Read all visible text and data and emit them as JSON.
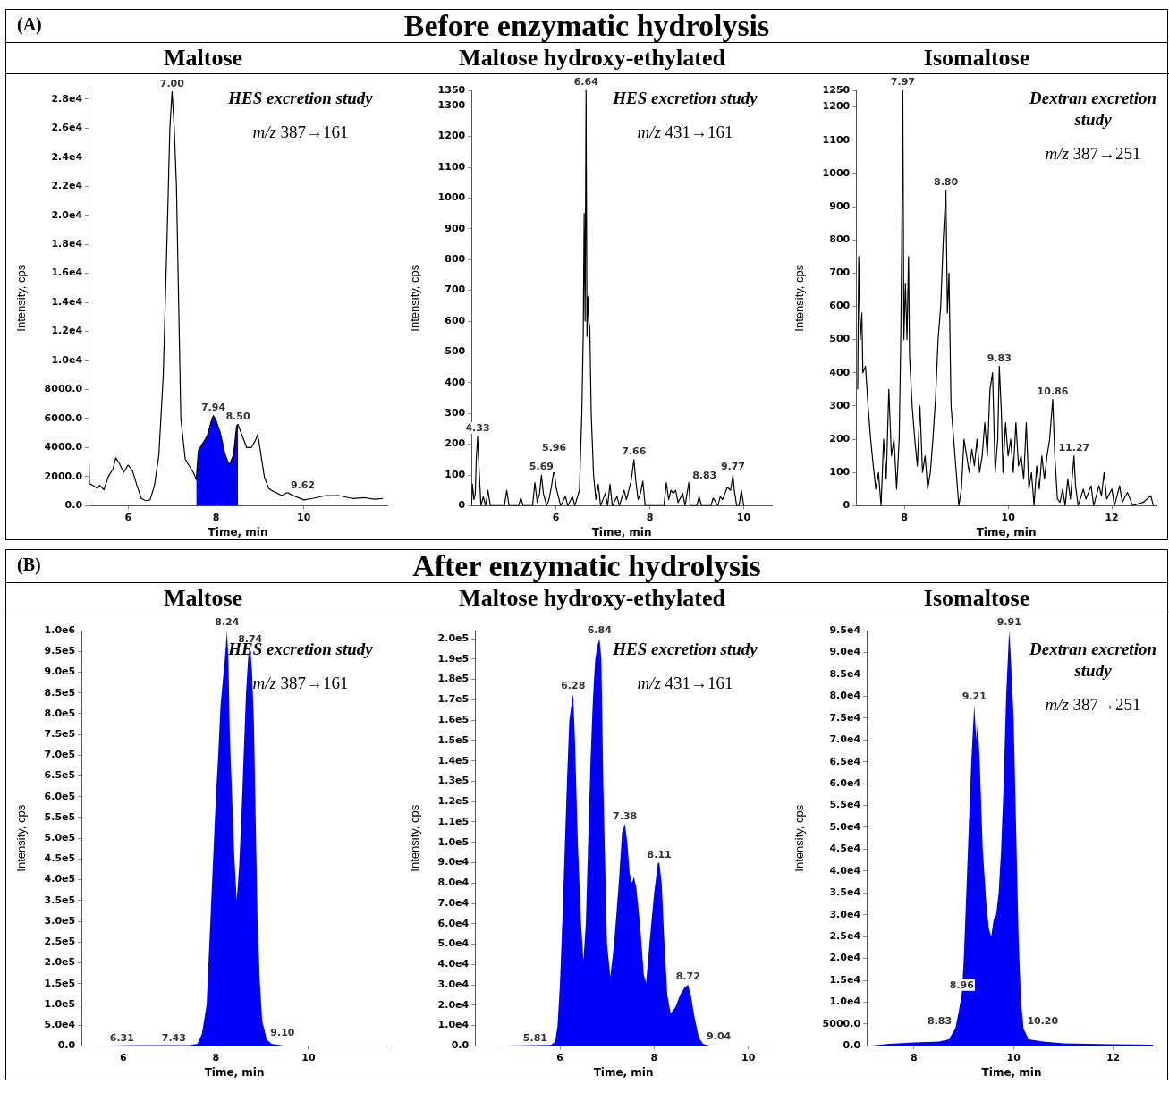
{
  "chart_data": [
    {
      "type": "other",
      "title": "Before enzymatic hydrolysis",
      "annotations": [
        "(A)"
      ]
    },
    {
      "type": "line",
      "title": "Maltose",
      "xlabel": "Time, min",
      "ylabel": "Intensity, cps",
      "marker": "none",
      "legend": false,
      "grid": false,
      "xlim": [
        5.1,
        11.9
      ],
      "xticks": [
        6,
        8,
        10
      ],
      "ylim": [
        0,
        28600
      ],
      "yticks": [
        {
          "value": 0,
          "label": "0.0"
        },
        {
          "value": 2000,
          "label": "2000.0"
        },
        {
          "value": 4000,
          "label": "4000.0"
        },
        {
          "value": 6000,
          "label": "6000.0"
        },
        {
          "value": 8000,
          "label": "8000.0"
        },
        {
          "value": 10000,
          "label": "1.0e4"
        },
        {
          "value": 12000,
          "label": "1.2e4"
        },
        {
          "value": 14000,
          "label": "1.4e4"
        },
        {
          "value": 16000,
          "label": "1.6e4"
        },
        {
          "value": 18000,
          "label": "1.8e4"
        },
        {
          "value": 20000,
          "label": "2.0e4"
        },
        {
          "value": 22000,
          "label": "2.2e4"
        },
        {
          "value": 24000,
          "label": "2.4e4"
        },
        {
          "value": 26000,
          "label": "2.6e4"
        },
        {
          "value": 28000,
          "label": "2.8e4"
        }
      ],
      "series": [
        {
          "type": "line",
          "color": "#000000",
          "x": [
            5.1,
            5.12,
            5.2,
            5.3,
            5.35,
            5.45,
            5.55,
            5.65,
            5.72,
            5.8,
            5.9,
            6.0,
            6.1,
            6.2,
            6.3,
            6.4,
            6.5,
            6.6,
            6.7,
            6.8,
            6.9,
            6.95,
            7.0,
            7.05,
            7.1,
            7.15,
            7.2,
            7.3,
            7.4,
            7.5,
            7.55,
            7.6,
            7.7,
            7.8,
            7.9,
            7.94,
            8.0,
            8.1,
            8.2,
            8.3,
            8.4,
            8.47,
            8.5,
            8.6,
            8.7,
            8.8,
            8.9,
            8.95,
            9.0,
            9.1,
            9.2,
            9.3,
            9.5,
            9.62,
            9.8,
            10.0,
            10.2,
            10.5,
            10.8,
            11.1,
            11.4,
            11.6,
            11.8
          ],
          "values": [
            4200,
            1500,
            1400,
            1200,
            1400,
            1100,
            2000,
            2500,
            3300,
            2900,
            2300,
            2800,
            2400,
            1400,
            500,
            350,
            400,
            1400,
            3500,
            9000,
            20000,
            26000,
            28500,
            26000,
            22000,
            14000,
            6000,
            3200,
            2700,
            2200,
            1800,
            3800,
            4300,
            4800,
            5900,
            6200,
            5900,
            5000,
            3600,
            2800,
            3500,
            5500,
            5600,
            4800,
            4000,
            4000,
            4500,
            4900,
            4000,
            2000,
            1200,
            1000,
            700,
            900,
            650,
            400,
            500,
            700,
            700,
            500,
            550,
            450,
            500
          ]
        },
        {
          "type": "area",
          "color": "#0000ff",
          "x": [
            7.55,
            7.6,
            7.7,
            7.8,
            7.9,
            7.94,
            8.0,
            8.1,
            8.2,
            8.3,
            8.4,
            8.47,
            8.5
          ],
          "values": [
            1800,
            3800,
            4300,
            4800,
            5900,
            6200,
            5900,
            5000,
            3600,
            2800,
            3500,
            5500,
            5600
          ]
        }
      ],
      "annotations": [
        "HES excretion study",
        "m/z 387→161",
        {
          "text": "7.00",
          "x": 7.0,
          "y": 28500
        },
        {
          "text": "7.94",
          "x": 7.94,
          "y": 6200
        },
        {
          "text": "8.50",
          "x": 8.5,
          "y": 5600
        },
        {
          "text": "9.62",
          "x": 9.62,
          "y": 900
        }
      ]
    },
    {
      "type": "line",
      "title": "Maltose hydroxy-ethylated",
      "xlabel": "Time, min",
      "ylabel": "Intensity, cps",
      "marker": "none",
      "legend": false,
      "grid": false,
      "xlim": [
        4.2,
        10.6
      ],
      "xticks": [
        6,
        8,
        10
      ],
      "ylim": [
        0,
        1350
      ],
      "yticks": [
        0,
        100,
        200,
        300,
        400,
        500,
        600,
        700,
        800,
        900,
        1000,
        1100,
        1200,
        1300,
        1350
      ],
      "series": [
        {
          "type": "line",
          "color": "#000000",
          "x": [
            4.2,
            4.22,
            4.25,
            4.28,
            4.3,
            4.33,
            4.36,
            4.4,
            4.45,
            4.5,
            4.55,
            4.6,
            4.9,
            4.95,
            5.0,
            5.2,
            5.25,
            5.3,
            5.5,
            5.55,
            5.6,
            5.65,
            5.69,
            5.73,
            5.8,
            5.85,
            5.9,
            5.96,
            6.0,
            6.05,
            6.1,
            6.2,
            6.25,
            6.35,
            6.4,
            6.5,
            6.55,
            6.58,
            6.6,
            6.62,
            6.64,
            6.66,
            6.68,
            6.7,
            6.72,
            6.75,
            6.8,
            6.85,
            6.9,
            6.95,
            7.05,
            7.1,
            7.15,
            7.2,
            7.3,
            7.35,
            7.45,
            7.5,
            7.55,
            7.6,
            7.66,
            7.7,
            7.75,
            7.8,
            7.85,
            7.9,
            8.3,
            8.35,
            8.4,
            8.45,
            8.5,
            8.55,
            8.6,
            8.7,
            8.75,
            8.83,
            8.86,
            9.0,
            9.05,
            9.1,
            9.3,
            9.35,
            9.45,
            9.5,
            9.55,
            9.6,
            9.65,
            9.72,
            9.77,
            9.8,
            9.85,
            9.9,
            9.95,
            10.0
          ],
          "values": [
            0,
            70,
            20,
            40,
            150,
            225,
            120,
            0,
            30,
            0,
            50,
            0,
            0,
            50,
            0,
            0,
            25,
            0,
            0,
            75,
            10,
            40,
            100,
            40,
            0,
            20,
            60,
            120,
            60,
            30,
            0,
            30,
            0,
            30,
            0,
            50,
            300,
            550,
            950,
            600,
            1350,
            550,
            680,
            600,
            580,
            300,
            100,
            20,
            70,
            0,
            40,
            0,
            70,
            0,
            30,
            0,
            50,
            20,
            50,
            80,
            150,
            80,
            20,
            40,
            80,
            0,
            0,
            75,
            20,
            50,
            40,
            50,
            10,
            40,
            0,
            75,
            0,
            0,
            30,
            0,
            0,
            25,
            0,
            30,
            20,
            40,
            60,
            50,
            100,
            50,
            0,
            0,
            50,
            0
          ]
        }
      ],
      "annotations": [
        "HES excretion study",
        "m/z 431→161",
        {
          "text": "4.33",
          "x": 4.33,
          "y": 225
        },
        {
          "text": "5.69",
          "x": 5.69,
          "y": 100
        },
        {
          "text": "5.96",
          "x": 5.96,
          "y": 120
        },
        {
          "text": "6.64",
          "x": 6.64,
          "y": 1350
        },
        {
          "text": "7.66",
          "x": 7.66,
          "y": 150
        },
        {
          "text": "8.83",
          "x": 8.83,
          "y": 75
        },
        {
          "text": "9.77",
          "x": 9.77,
          "y": 100
        }
      ]
    },
    {
      "type": "line",
      "title": "Isomaltose",
      "xlabel": "Time, min",
      "ylabel": "Intensity, cps",
      "marker": "none",
      "legend": false,
      "grid": false,
      "xlim": [
        7.07,
        12.86
      ],
      "xticks": [
        8,
        10,
        12
      ],
      "ylim": [
        0,
        1250
      ],
      "yticks": [
        0,
        100,
        200,
        300,
        400,
        500,
        600,
        700,
        800,
        900,
        1000,
        1100,
        1200,
        1250
      ],
      "series": [
        {
          "type": "line",
          "color": "#000000",
          "x": [
            7.1,
            7.12,
            7.15,
            7.18,
            7.2,
            7.25,
            7.3,
            7.35,
            7.4,
            7.45,
            7.5,
            7.55,
            7.6,
            7.65,
            7.7,
            7.75,
            7.8,
            7.85,
            7.9,
            7.93,
            7.95,
            7.97,
            7.99,
            8.02,
            8.05,
            8.08,
            8.1,
            8.15,
            8.2,
            8.25,
            8.3,
            8.35,
            8.4,
            8.45,
            8.5,
            8.55,
            8.6,
            8.65,
            8.7,
            8.75,
            8.8,
            8.83,
            8.86,
            8.9,
            8.95,
            9.0,
            9.05,
            9.1,
            9.15,
            9.2,
            9.25,
            9.3,
            9.35,
            9.4,
            9.45,
            9.5,
            9.55,
            9.6,
            9.65,
            9.7,
            9.75,
            9.8,
            9.83,
            9.87,
            9.9,
            9.95,
            10.0,
            10.05,
            10.1,
            10.15,
            10.2,
            10.25,
            10.3,
            10.35,
            10.4,
            10.45,
            10.5,
            10.55,
            10.6,
            10.65,
            10.7,
            10.75,
            10.8,
            10.86,
            10.9,
            10.95,
            11.0,
            11.05,
            11.1,
            11.15,
            11.2,
            11.27,
            11.3,
            11.35,
            11.45,
            11.5,
            11.6,
            11.65,
            11.75,
            11.8,
            11.85,
            11.9,
            12.0,
            12.05,
            12.15,
            12.2,
            12.3,
            12.4,
            12.6,
            12.75,
            12.8
          ],
          "values": [
            350,
            750,
            500,
            580,
            400,
            420,
            300,
            200,
            120,
            50,
            100,
            0,
            200,
            80,
            350,
            150,
            200,
            50,
            200,
            500,
            800,
            1250,
            500,
            670,
            500,
            750,
            450,
            300,
            200,
            120,
            300,
            100,
            150,
            50,
            100,
            200,
            320,
            500,
            600,
            800,
            950,
            580,
            700,
            300,
            200,
            100,
            0,
            50,
            200,
            150,
            100,
            170,
            120,
            200,
            100,
            150,
            250,
            150,
            350,
            400,
            100,
            200,
            420,
            280,
            100,
            250,
            150,
            200,
            100,
            250,
            120,
            150,
            80,
            250,
            50,
            100,
            0,
            120,
            50,
            150,
            80,
            150,
            200,
            320,
            150,
            20,
            10,
            50,
            0,
            80,
            20,
            150,
            60,
            0,
            50,
            20,
            60,
            0,
            60,
            30,
            100,
            20,
            50,
            0,
            60,
            10,
            40,
            0,
            10,
            30,
            0
          ]
        }
      ],
      "annotations": [
        "Dextran excretion study",
        "m/z 387→251",
        {
          "text": "7.97",
          "x": 7.97,
          "y": 1250
        },
        {
          "text": "8.80",
          "x": 8.8,
          "y": 950
        },
        {
          "text": "9.83",
          "x": 9.83,
          "y": 420
        },
        {
          "text": "10.86",
          "x": 10.86,
          "y": 320
        },
        {
          "text": "11.27",
          "x": 11.27,
          "y": 150
        }
      ]
    },
    {
      "type": "other",
      "title": "After enzymatic hydrolysis",
      "annotations": [
        "(B)"
      ]
    },
    {
      "type": "area",
      "title": "Maltose",
      "xlabel": "Time, min",
      "ylabel": "Intensity, cps",
      "marker": "none",
      "legend": false,
      "grid": false,
      "xlim": [
        5.1,
        11.7
      ],
      "xticks": [
        6,
        8,
        10
      ],
      "ylim": [
        0,
        1000000
      ],
      "yticks": [
        {
          "value": 0,
          "label": "0.0"
        },
        {
          "value": 50000,
          "label": "5.0e4"
        },
        {
          "value": 100000,
          "label": "1.0e5"
        },
        {
          "value": 150000,
          "label": "1.5e5"
        },
        {
          "value": 200000,
          "label": "2.0e5"
        },
        {
          "value": 250000,
          "label": "2.5e5"
        },
        {
          "value": 300000,
          "label": "3.0e5"
        },
        {
          "value": 350000,
          "label": "3.5e5"
        },
        {
          "value": 400000,
          "label": "4.0e5"
        },
        {
          "value": 450000,
          "label": "4.5e5"
        },
        {
          "value": 500000,
          "label": "5.0e5"
        },
        {
          "value": 550000,
          "label": "5.5e5"
        },
        {
          "value": 600000,
          "label": "6.0e5"
        },
        {
          "value": 650000,
          "label": "6.5e5"
        },
        {
          "value": 700000,
          "label": "7.0e5"
        },
        {
          "value": 750000,
          "label": "7.5e5"
        },
        {
          "value": 800000,
          "label": "8.0e5"
        },
        {
          "value": 850000,
          "label": "8.5e5"
        },
        {
          "value": 900000,
          "label": "9.0e5"
        },
        {
          "value": 950000,
          "label": "9.5e5"
        },
        {
          "value": 1000000,
          "label": "1.0e6"
        }
      ],
      "series": [
        {
          "type": "area",
          "color": "#0000ff",
          "x": [
            5.1,
            6.31,
            7.43,
            7.6,
            7.7,
            7.8,
            7.9,
            8.0,
            8.05,
            8.1,
            8.15,
            8.2,
            8.24,
            8.27,
            8.3,
            8.35,
            8.4,
            8.45,
            8.5,
            8.55,
            8.6,
            8.65,
            8.7,
            8.74,
            8.78,
            8.82,
            8.85,
            8.9,
            8.95,
            9.0,
            9.1,
            9.2,
            9.4,
            9.5
          ],
          "values": [
            0,
            2000,
            2000,
            5000,
            30000,
            100000,
            350000,
            600000,
            700000,
            820000,
            880000,
            940000,
            1000000,
            930000,
            750000,
            600000,
            450000,
            350000,
            430000,
            550000,
            700000,
            850000,
            940000,
            960000,
            900000,
            780000,
            600000,
            300000,
            150000,
            60000,
            15000,
            5000,
            2000,
            0
          ]
        }
      ],
      "annotations": [
        "HES excretion study",
        "m/z 387→161",
        {
          "text": "6.31",
          "x": 6.31,
          "y": 2000
        },
        {
          "text": "7.43",
          "x": 7.43,
          "y": 2000
        },
        {
          "text": "8.24",
          "x": 8.24,
          "y": 1000000
        },
        {
          "text": "8.74",
          "x": 8.74,
          "y": 960000
        },
        {
          "text": "9.10",
          "x": 9.1,
          "y": 15000
        }
      ]
    },
    {
      "type": "area",
      "title": "Maltose hydroxy-ethylated",
      "xlabel": "Time, min",
      "ylabel": "Intensity, cps",
      "marker": "none",
      "legend": false,
      "grid": false,
      "xlim": [
        4.2,
        10.5
      ],
      "xticks": [
        6,
        8,
        10
      ],
      "ylim": [
        0,
        204000
      ],
      "yticks": [
        {
          "value": 0,
          "label": "0.0"
        },
        {
          "value": 10000,
          "label": "1.0e4"
        },
        {
          "value": 20000,
          "label": "2.0e4"
        },
        {
          "value": 30000,
          "label": "3.0e4"
        },
        {
          "value": 40000,
          "label": "4.0e4"
        },
        {
          "value": 50000,
          "label": "5.0e4"
        },
        {
          "value": 60000,
          "label": "6.0e4"
        },
        {
          "value": 70000,
          "label": "7.0e4"
        },
        {
          "value": 80000,
          "label": "8.0e4"
        },
        {
          "value": 90000,
          "label": "9.0e4"
        },
        {
          "value": 100000,
          "label": "1.0e5"
        },
        {
          "value": 110000,
          "label": "1.1e5"
        },
        {
          "value": 120000,
          "label": "1.2e5"
        },
        {
          "value": 130000,
          "label": "1.3e5"
        },
        {
          "value": 140000,
          "label": "1.4e5"
        },
        {
          "value": 150000,
          "label": "1.5e5"
        },
        {
          "value": 160000,
          "label": "1.6e5"
        },
        {
          "value": 170000,
          "label": "1.7e5"
        },
        {
          "value": 180000,
          "label": "1.8e5"
        },
        {
          "value": 190000,
          "label": "1.9e5"
        },
        {
          "value": 200000,
          "label": "2.0e5"
        }
      ],
      "series": [
        {
          "type": "area",
          "color": "#0000ff",
          "x": [
            4.2,
            5.81,
            5.9,
            5.95,
            6.0,
            6.05,
            6.1,
            6.15,
            6.2,
            6.28,
            6.32,
            6.38,
            6.45,
            6.5,
            6.55,
            6.6,
            6.65,
            6.7,
            6.75,
            6.8,
            6.84,
            6.88,
            6.92,
            6.97,
            7.0,
            7.07,
            7.15,
            7.25,
            7.32,
            7.38,
            7.43,
            7.48,
            7.53,
            7.57,
            7.62,
            7.7,
            7.78,
            7.83,
            7.9,
            8.0,
            8.08,
            8.11,
            8.16,
            8.22,
            8.28,
            8.35,
            8.45,
            8.55,
            8.65,
            8.72,
            8.78,
            8.85,
            8.95,
            9.04,
            9.2
          ],
          "values": [
            0,
            500,
            2000,
            10000,
            30000,
            60000,
            95000,
            130000,
            160000,
            173000,
            150000,
            100000,
            60000,
            42000,
            60000,
            100000,
            140000,
            170000,
            190000,
            197000,
            200000,
            190000,
            130000,
            80000,
            50000,
            34000,
            50000,
            80000,
            105000,
            109000,
            100000,
            85000,
            80000,
            83000,
            78000,
            60000,
            35000,
            31000,
            50000,
            75000,
            90000,
            90000,
            80000,
            50000,
            25000,
            16000,
            19000,
            25000,
            29000,
            30000,
            25000,
            15000,
            4000,
            1000,
            0
          ]
        }
      ],
      "annotations": [
        "HES excretion study",
        "m/z 431→161",
        {
          "text": "5.81",
          "x": 5.81,
          "y": 500
        },
        {
          "text": "6.28",
          "x": 6.28,
          "y": 173000
        },
        {
          "text": "6.84",
          "x": 6.84,
          "y": 200000
        },
        {
          "text": "7.38",
          "x": 7.38,
          "y": 109000
        },
        {
          "text": "8.11",
          "x": 8.11,
          "y": 90000
        },
        {
          "text": "8.72",
          "x": 8.72,
          "y": 30000
        },
        {
          "text": "9.04",
          "x": 9.04,
          "y": 1000
        }
      ]
    },
    {
      "type": "area",
      "title": "Isomaltose",
      "xlabel": "Time, min",
      "ylabel": "Intensity, cps",
      "marker": "none",
      "legend": false,
      "grid": false,
      "xlim": [
        7.05,
        12.87
      ],
      "xticks": [
        8,
        10,
        12
      ],
      "ylim": [
        0,
        95000
      ],
      "yticks": [
        {
          "value": 0,
          "label": "0.0"
        },
        {
          "value": 5000,
          "label": "5000.0"
        },
        {
          "value": 10000,
          "label": "1.0e4"
        },
        {
          "value": 15000,
          "label": "1.5e4"
        },
        {
          "value": 20000,
          "label": "2.0e4"
        },
        {
          "value": 25000,
          "label": "2.5e4"
        },
        {
          "value": 30000,
          "label": "3.0e4"
        },
        {
          "value": 35000,
          "label": "3.5e4"
        },
        {
          "value": 40000,
          "label": "4.0e4"
        },
        {
          "value": 45000,
          "label": "4.5e4"
        },
        {
          "value": 50000,
          "label": "5.0e4"
        },
        {
          "value": 55000,
          "label": "5.5e4"
        },
        {
          "value": 60000,
          "label": "6.0e4"
        },
        {
          "value": 65000,
          "label": "6.5e4"
        },
        {
          "value": 70000,
          "label": "7.0e4"
        },
        {
          "value": 75000,
          "label": "7.5e4"
        },
        {
          "value": 80000,
          "label": "8.0e4"
        },
        {
          "value": 85000,
          "label": "8.5e4"
        },
        {
          "value": 90000,
          "label": "9.0e4"
        },
        {
          "value": 95000,
          "label": "9.5e4"
        }
      ],
      "series": [
        {
          "type": "area",
          "color": "#0000ff",
          "x": [
            7.05,
            7.5,
            8.0,
            8.5,
            8.7,
            8.83,
            8.9,
            8.96,
            9.0,
            9.05,
            9.1,
            9.15,
            9.21,
            9.25,
            9.28,
            9.32,
            9.38,
            9.45,
            9.5,
            9.55,
            9.6,
            9.65,
            9.7,
            9.75,
            9.8,
            9.85,
            9.91,
            9.94,
            9.98,
            10.0,
            10.05,
            10.1,
            10.15,
            10.2,
            10.3,
            10.6,
            11.0,
            11.5,
            12.0,
            12.8
          ],
          "values": [
            0,
            500,
            800,
            1000,
            1500,
            4000,
            8000,
            12000,
            20000,
            35000,
            50000,
            65000,
            78000,
            70000,
            74000,
            65000,
            45000,
            33000,
            27000,
            25000,
            29000,
            30000,
            35000,
            45000,
            60000,
            80000,
            95000,
            90000,
            80000,
            75000,
            50000,
            25000,
            10000,
            4000,
            1500,
            1000,
            600,
            500,
            400,
            300
          ]
        }
      ],
      "annotations": [
        "Dextran excretion study",
        "m/z 387→251",
        {
          "text": "8.83",
          "x": 8.83,
          "y": 4000
        },
        {
          "text": "8.96",
          "x": 8.96,
          "y": 12000
        },
        {
          "text": "9.21",
          "x": 9.21,
          "y": 78000
        },
        {
          "text": "9.91",
          "x": 9.91,
          "y": 95000
        },
        {
          "text": "10.20",
          "x": 10.2,
          "y": 4000
        }
      ]
    }
  ]
}
